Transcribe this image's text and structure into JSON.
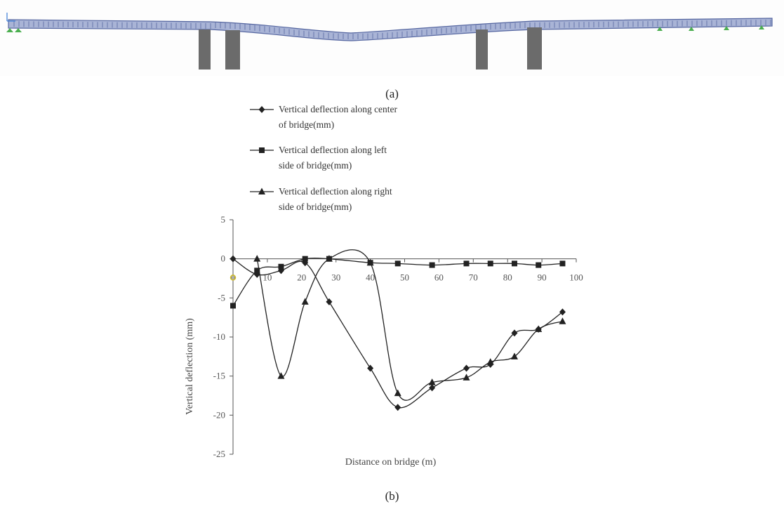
{
  "captions": {
    "a": "(a)",
    "b": "(b)"
  },
  "colors": {
    "deck": "#a9b4d6",
    "deck_outline": "#5566a0",
    "pier": "#6b6b6b",
    "support": "#4caf50",
    "line": "#222222",
    "axis": "#555555"
  },
  "chart_data": {
    "type": "line",
    "title": "",
    "xlabel": "Distance on bridge (m)",
    "ylabel": "Vertical deflection (mm)",
    "xlim": [
      0,
      100
    ],
    "ylim": [
      -25,
      5
    ],
    "xticks": [
      "0",
      "10",
      "20",
      "30",
      "40",
      "50",
      "60",
      "70",
      "80",
      "90",
      "100"
    ],
    "yticks": [
      "5",
      "0",
      "-5",
      "-10",
      "-15",
      "-20",
      "-25"
    ],
    "legend_position": "top-left",
    "series": [
      {
        "name": "Vertical deflection along center of bridge(mm)",
        "legend_lines": [
          "Vertical deflection along center",
          "of bridge(mm)"
        ],
        "marker": "diamond",
        "x": [
          0,
          7,
          14,
          21,
          28,
          40,
          48,
          58,
          68,
          75,
          82,
          89,
          96
        ],
        "y": [
          0,
          -2,
          -1.5,
          -0.5,
          -5.5,
          -14,
          -19,
          -16.5,
          -14,
          -13.5,
          -9.5,
          -9,
          -6.8
        ]
      },
      {
        "name": "Vertical deflection along left side of bridge(mm)",
        "legend_lines": [
          "Vertical deflection along left",
          "side of bridge(mm)"
        ],
        "marker": "square",
        "x": [
          0,
          7,
          14,
          21,
          28,
          40,
          48,
          58,
          68,
          75,
          82,
          89,
          96
        ],
        "y": [
          -6,
          -1.5,
          -1,
          0,
          0,
          -0.5,
          -0.6,
          -0.8,
          -0.6,
          -0.6,
          -0.6,
          -0.8,
          -0.6
        ]
      },
      {
        "name": "Vertical deflection along right side of bridge(mm)",
        "legend_lines": [
          "Vertical deflection along right",
          "side of bridge(mm)"
        ],
        "marker": "triangle",
        "x": [
          7,
          14,
          21,
          28,
          40,
          48,
          58,
          68,
          75,
          82,
          89,
          96
        ],
        "y": [
          0,
          -15,
          -5.5,
          0,
          -0.5,
          -17.2,
          -15.8,
          -15.2,
          -13.2,
          -12.5,
          -9,
          -8
        ]
      }
    ]
  }
}
